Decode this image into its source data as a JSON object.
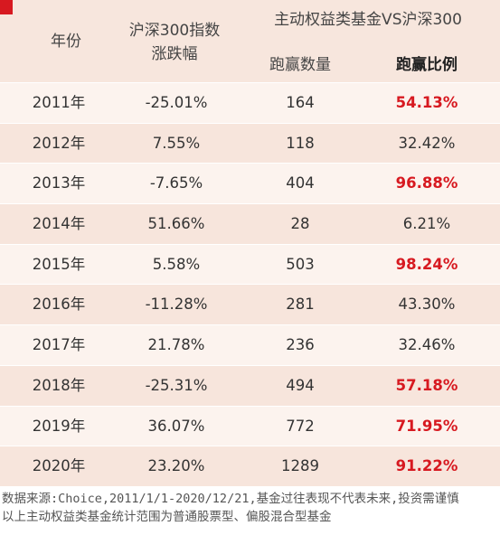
{
  "header": {
    "year": "年份",
    "index_line1": "沪深300指数",
    "index_line2": "涨跌幅",
    "group": "主动权益类基金VS沪深300",
    "count": "跑赢数量",
    "ratio": "跑赢比例"
  },
  "rows": [
    {
      "year": "2011年",
      "index": "-25.01%",
      "count": "164",
      "ratio": "54.13%",
      "highlight": true
    },
    {
      "year": "2012年",
      "index": "7.55%",
      "count": "118",
      "ratio": "32.42%",
      "highlight": false
    },
    {
      "year": "2013年",
      "index": "-7.65%",
      "count": "404",
      "ratio": "96.88%",
      "highlight": true
    },
    {
      "year": "2014年",
      "index": "51.66%",
      "count": "28",
      "ratio": "6.21%",
      "highlight": false
    },
    {
      "year": "2015年",
      "index": "5.58%",
      "count": "503",
      "ratio": "98.24%",
      "highlight": true
    },
    {
      "year": "2016年",
      "index": "-11.28%",
      "count": "281",
      "ratio": "43.30%",
      "highlight": false
    },
    {
      "year": "2017年",
      "index": "21.78%",
      "count": "236",
      "ratio": "32.46%",
      "highlight": false
    },
    {
      "year": "2018年",
      "index": "-25.31%",
      "count": "494",
      "ratio": "57.18%",
      "highlight": true
    },
    {
      "year": "2019年",
      "index": "36.07%",
      "count": "772",
      "ratio": "71.95%",
      "highlight": true
    },
    {
      "year": "2020年",
      "index": "23.20%",
      "count": "1289",
      "ratio": "91.22%",
      "highlight": true
    }
  ],
  "footer": {
    "line1": "数据来源:Choice,2011/1/1-2020/12/21,基金过往表现不代表未来,投资需谨慎",
    "line2": "以上主动权益类基金统计范围为普通股票型、偏股混合型基金"
  },
  "colors": {
    "highlight": "#d71920",
    "accent": "#d71920"
  }
}
